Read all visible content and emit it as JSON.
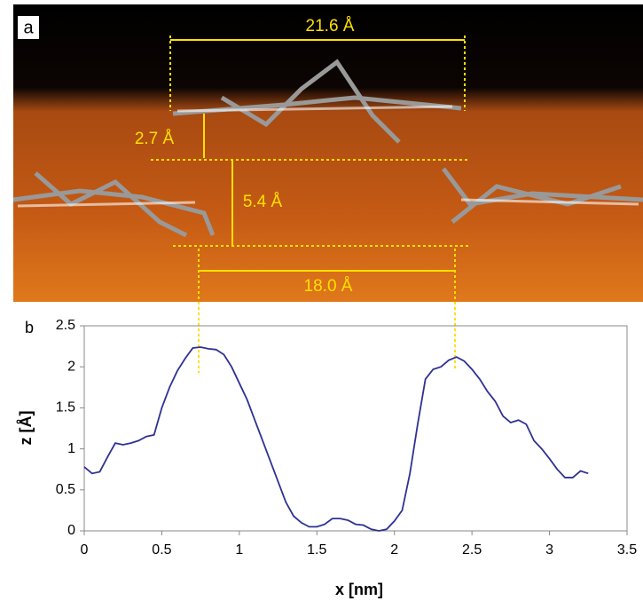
{
  "panel_a": {
    "label": "a",
    "annotations": [
      "21.6 Å",
      "2.7 Å",
      "5.4 Å",
      "18.0 Å"
    ]
  },
  "chart_data": {
    "type": "line",
    "panel_label": "b",
    "xlabel": "x [nm]",
    "ylabel": "z [Å]",
    "x": [
      0,
      0.05,
      0.1,
      0.15,
      0.2,
      0.25,
      0.3,
      0.35,
      0.4,
      0.45,
      0.5,
      0.55,
      0.6,
      0.65,
      0.7,
      0.75,
      0.8,
      0.85,
      0.9,
      0.95,
      1.0,
      1.05,
      1.1,
      1.15,
      1.2,
      1.25,
      1.3,
      1.35,
      1.4,
      1.45,
      1.5,
      1.55,
      1.6,
      1.65,
      1.7,
      1.75,
      1.8,
      1.85,
      1.9,
      1.95,
      2.0,
      2.05,
      2.1,
      2.15,
      2.2,
      2.25,
      2.3,
      2.35,
      2.4,
      2.45,
      2.5,
      2.55,
      2.6,
      2.65,
      2.7,
      2.75,
      2.8,
      2.85,
      2.9,
      2.95,
      3.0,
      3.05,
      3.1,
      3.15,
      3.2,
      3.25
    ],
    "series": [
      {
        "color": "#2e3192",
        "values": [
          0.78,
          0.7,
          0.72,
          0.9,
          1.07,
          1.05,
          1.07,
          1.1,
          1.15,
          1.17,
          1.5,
          1.75,
          1.95,
          2.1,
          2.23,
          2.24,
          2.22,
          2.21,
          2.15,
          2.0,
          1.8,
          1.6,
          1.35,
          1.1,
          0.85,
          0.6,
          0.35,
          0.18,
          0.1,
          0.05,
          0.05,
          0.08,
          0.15,
          0.15,
          0.13,
          0.08,
          0.07,
          0.02,
          0.0,
          0.02,
          0.12,
          0.25,
          0.7,
          1.3,
          1.85,
          1.97,
          2.0,
          2.08,
          2.12,
          2.07,
          1.97,
          1.85,
          1.7,
          1.58,
          1.4,
          1.32,
          1.35,
          1.3,
          1.1,
          1.0,
          0.88,
          0.75,
          0.65,
          0.65,
          0.73,
          0.7
        ]
      }
    ],
    "xlim": [
      0,
      3.5
    ],
    "ylim": [
      0,
      2.5
    ],
    "xticks": [
      0,
      0.5,
      1,
      1.5,
      2,
      2.5,
      3,
      3.5
    ],
    "yticks": [
      0,
      0.5,
      1,
      1.5,
      2,
      2.5
    ],
    "grid": false
  }
}
